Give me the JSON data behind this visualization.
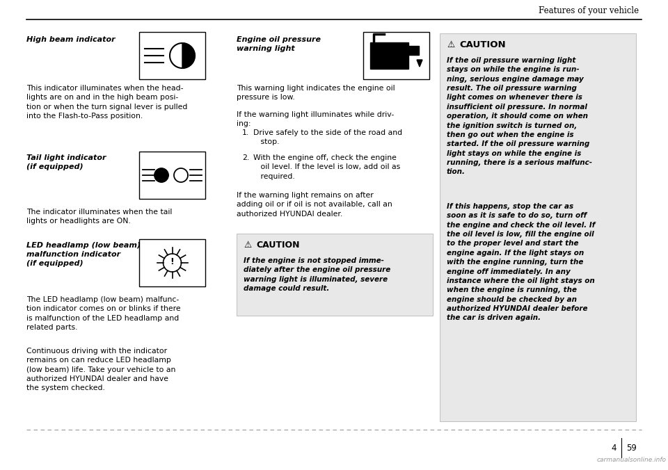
{
  "page_title": "Features of your vehicle",
  "bg_color": "#ffffff",
  "section1_title": "High beam indicator",
  "section1_body": "This indicator illuminates when the head-\nlights are on and in the high beam posi-\ntion or when the turn signal lever is pulled\ninto the Flash-to-Pass position.",
  "section2_title": "Tail light indicator\n(if equipped)",
  "section2_body": "The indicator illuminates when the tail\nlights or headlights are ON.",
  "section3_title": "LED headlamp (low beam)\nmalfunction indicator\n(if equipped)",
  "section3_body1": "The LED headlamp (low beam) malfunc-\ntion indicator comes on or blinks if there\nis malfunction of the LED headlamp and\nrelated parts.",
  "section3_body2": "Continuous driving with the indicator\nremains on can reduce LED headlamp\n(low beam) life. Take your vehicle to an\nauthorized HYUNDAI dealer and have\nthe system checked.",
  "section4_title": "Engine oil pressure\nwarning light",
  "section4_body1": "This warning light indicates the engine oil\npressure is low.",
  "section4_body2": "If the warning light illuminates while driv-\ning:",
  "section4_list1": "Drive safely to the side of the road and\n   stop.",
  "section4_list2": "With the engine off, check the engine\n   oil level. If the level is low, add oil as\n   required.",
  "section4_body3": "If the warning light remains on after\nadding oil or if oil is not available, call an\nauthorized HYUNDAI dealer.",
  "caution1_title": "CAUTION",
  "caution1_body": "If the engine is not stopped imme-\ndiately after the engine oil pressure\nwarning light is illuminated, severe\ndamage could result.",
  "caution2_title": "CAUTION",
  "caution2_body1": "If the oil pressure warning light\nstays on while the engine is run-\nning, serious engine damage may\nresult. The oil pressure warning\nlight comes on whenever there is\ninsufficient oil pressure. In normal\noperation, it should come on when\nthe ignition switch is turned on,\nthen go out when the engine is\nstarted. If the oil pressure warning\nlight stays on while the engine is\nrunning, there is a serious malfunc-\ntion.",
  "caution2_body2": "If this happens, stop the car as\nsoon as it is safe to do so, turn off\nthe engine and check the oil level. If\nthe oil level is low, fill the engine oil\nto the proper level and start the\nengine again. If the light stays on\nwith the engine running, turn the\nengine off immediately. In any\ninstance where the oil light stays on\nwhen the engine is running, the\nengine should be checked by an\nauthorized HYUNDAI dealer before\nthe car is driven again."
}
